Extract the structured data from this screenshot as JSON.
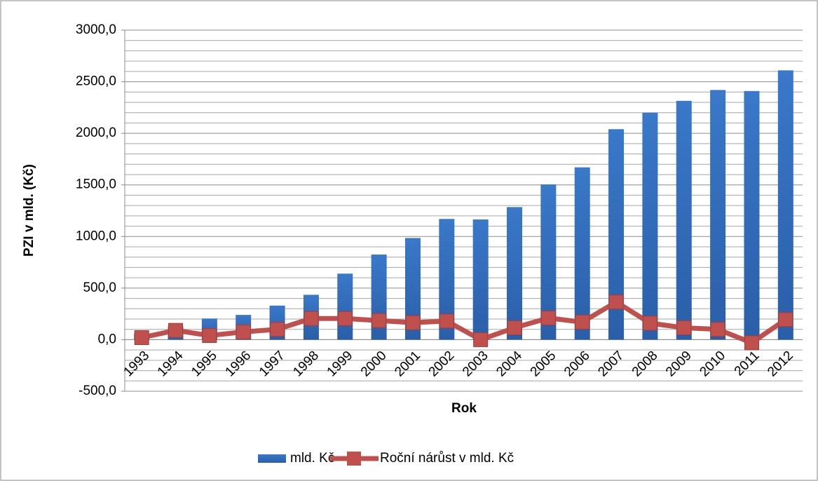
{
  "chart_data": {
    "type": "bar_line",
    "y_axis_label": "PZI v mld. (Kč)",
    "x_axis_label": "Rok",
    "categories": [
      "1993",
      "1994",
      "1995",
      "1996",
      "1997",
      "1998",
      "1999",
      "2000",
      "2001",
      "2002",
      "2003",
      "2004",
      "2005",
      "2006",
      "2007",
      "2008",
      "2009",
      "2010",
      "2011",
      "2012"
    ],
    "series": [
      {
        "name": "mld. Kč",
        "type": "bar",
        "color": "#3a78c9",
        "values": [
          60,
          130,
          205,
          240,
          330,
          435,
          640,
          825,
          985,
          1170,
          1165,
          1285,
          1505,
          1670,
          2040,
          2200,
          2315,
          2420,
          2410,
          2610
        ]
      },
      {
        "name": "Roční nárůst v mld. Kč",
        "type": "line",
        "color": "#c0504d",
        "values": [
          20,
          90,
          40,
          75,
          100,
          205,
          205,
          185,
          165,
          180,
          0,
          115,
          210,
          170,
          365,
          160,
          115,
          100,
          -30,
          195
        ]
      }
    ],
    "ylim": [
      -500,
      3000
    ],
    "yticks": [
      {
        "value": -500,
        "label": "-500,0"
      },
      {
        "value": 0,
        "label": "0,0"
      },
      {
        "value": 500,
        "label": "500,0"
      },
      {
        "value": 1000,
        "label": "1000,0"
      },
      {
        "value": 1500,
        "label": "1500,0"
      },
      {
        "value": 2000,
        "label": "2000,0"
      },
      {
        "value": 2500,
        "label": "2500,0"
      },
      {
        "value": 3000,
        "label": "3000,0"
      }
    ],
    "minor_yticks": [
      -400,
      -300,
      -200,
      -100,
      100,
      200,
      300,
      400,
      600,
      700,
      800,
      900,
      1100,
      1200,
      1300,
      1400,
      1600,
      1700,
      1800,
      1900,
      2100,
      2200,
      2300,
      2400,
      2600,
      2700,
      2800,
      2900
    ],
    "grid": true,
    "legend": "bottom"
  }
}
